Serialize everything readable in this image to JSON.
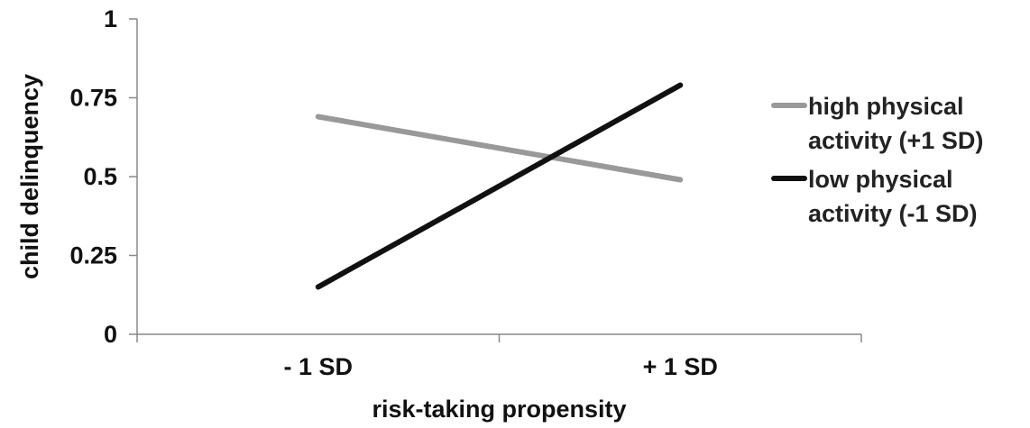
{
  "chart_data": {
    "type": "line",
    "xlabel": "risk-taking propensity",
    "ylabel": "child delinquency",
    "categories": [
      "- 1 SD",
      "+ 1 SD"
    ],
    "ylim": [
      0,
      1
    ],
    "yticks": [
      "0",
      "0.25",
      "0.5",
      "0.75",
      "1"
    ],
    "grid": false,
    "legend_position": "right",
    "series": [
      {
        "name": "high physical activity (+1 SD)",
        "name_lines": [
          "high physical",
          "activity (+1 SD)"
        ],
        "values": [
          0.69,
          0.49
        ],
        "color": "#999999"
      },
      {
        "name": "low physical activity (-1 SD)",
        "name_lines": [
          "low physical",
          "activity (-1 SD)"
        ],
        "values": [
          0.15,
          0.79
        ],
        "color": "#111111"
      }
    ]
  }
}
